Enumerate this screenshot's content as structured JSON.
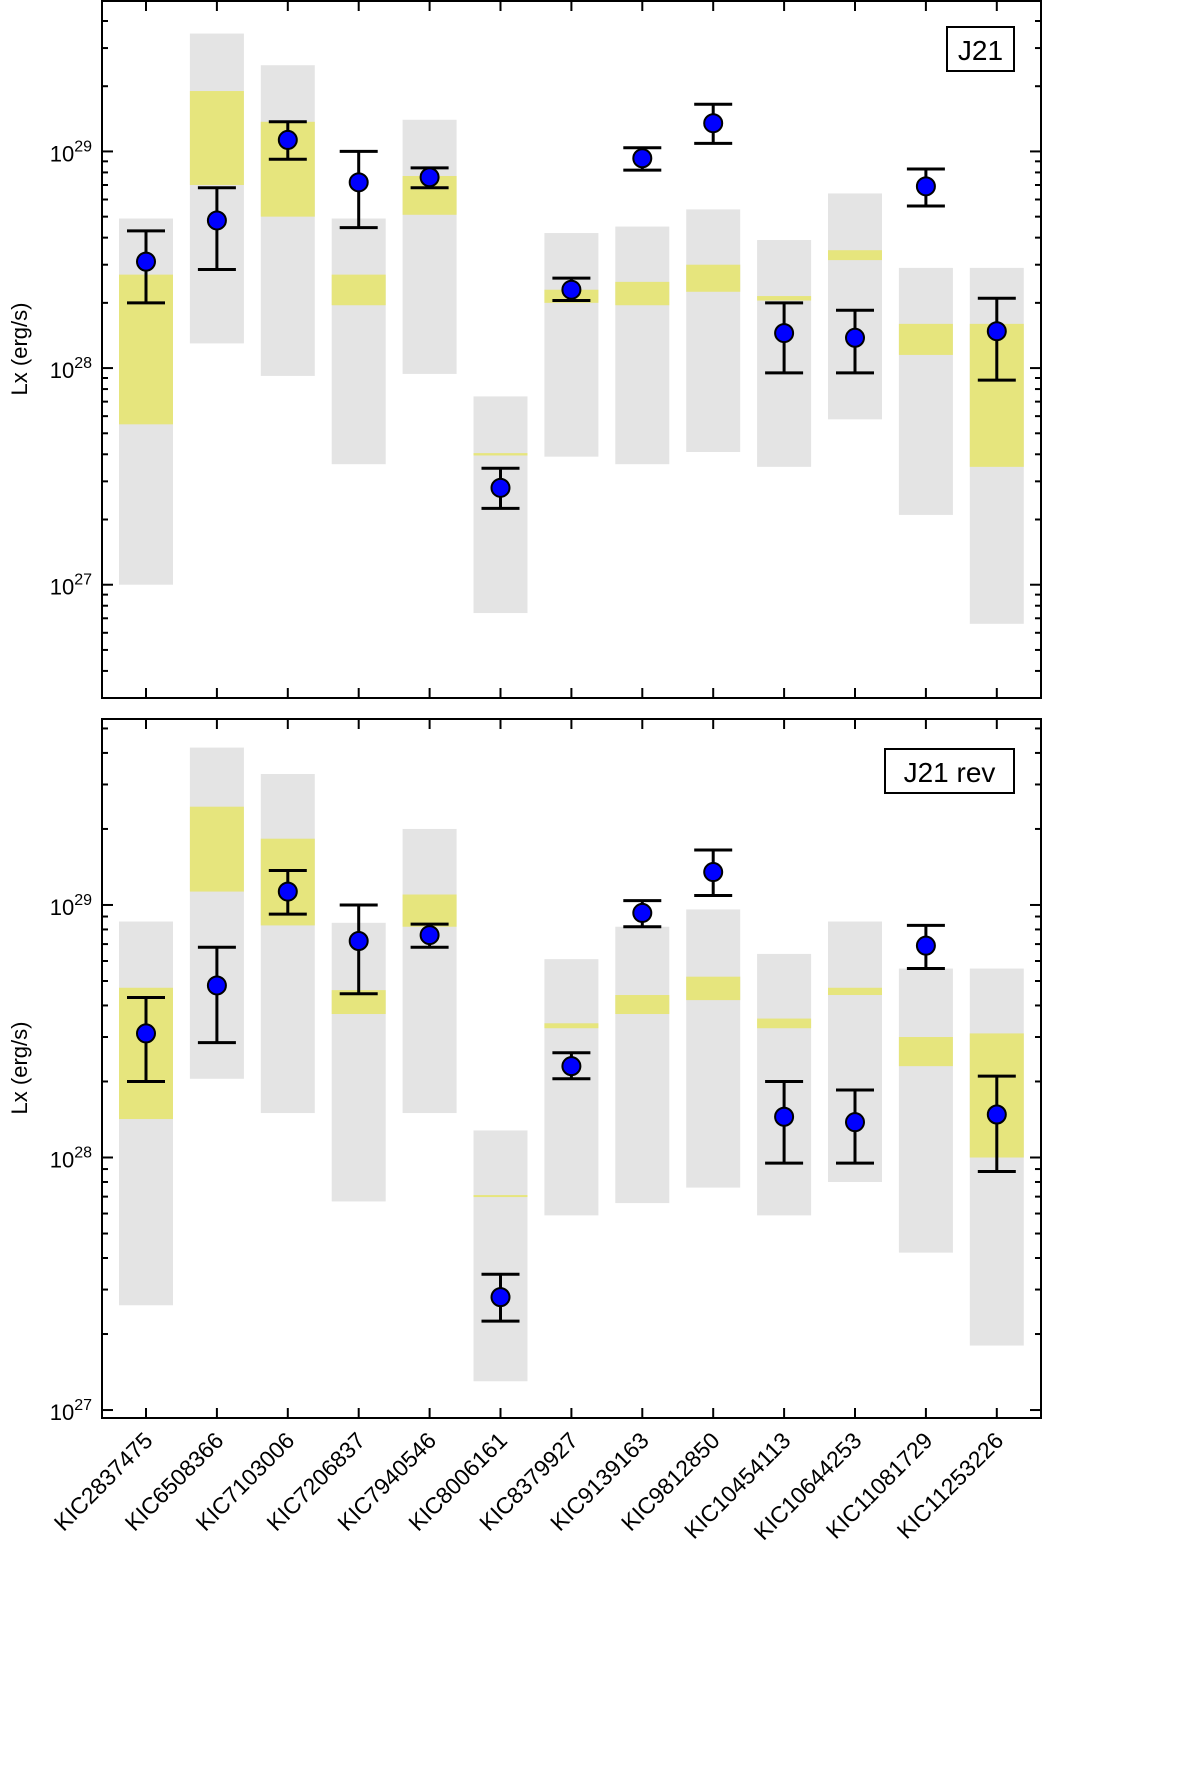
{
  "chart_data": [
    {
      "type": "errorbar-range",
      "panel_label": "J21",
      "ylabel": "Lx (erg/s)",
      "yscale": "log",
      "ylim": [
        3e+26,
        5e+29
      ],
      "yticks": [
        {
          "value": 1e+27,
          "base": "10",
          "exp": "27"
        },
        {
          "value": 1e+28,
          "base": "10",
          "exp": "28"
        },
        {
          "value": 1e+29,
          "base": "10",
          "exp": "29"
        }
      ],
      "categories": [
        "KIC2837475",
        "KIC6508366",
        "KIC7103006",
        "KIC7206837",
        "KIC7940546",
        "KIC8006161",
        "KIC8379927",
        "KIC9139163",
        "KIC9812850",
        "KIC10454113",
        "KIC10644253",
        "KIC11081729",
        "KIC11253226"
      ],
      "observed": [
        {
          "value": 3.1e+28,
          "low": 2e+28,
          "high": 4.3e+28
        },
        {
          "value": 4.8e+28,
          "low": 2.85e+28,
          "high": 6.8e+28
        },
        {
          "value": 1.13e+29,
          "low": 9.2e+28,
          "high": 1.37e+29
        },
        {
          "value": 7.2e+28,
          "low": 4.45e+28,
          "high": 1e+29
        },
        {
          "value": 7.6e+28,
          "low": 6.8e+28,
          "high": 8.4e+28
        },
        {
          "value": 2.8e+27,
          "low": 2.25e+27,
          "high": 3.45e+27
        },
        {
          "value": 2.3e+28,
          "low": 2.05e+28,
          "high": 2.6e+28
        },
        {
          "value": 9.3e+28,
          "low": 8.2e+28,
          "high": 1.04e+29
        },
        {
          "value": 1.35e+29,
          "low": 1.09e+29,
          "high": 1.65e+29
        },
        {
          "value": 1.45e+28,
          "low": 9.5e+27,
          "high": 2e+28
        },
        {
          "value": 1.38e+28,
          "low": 9.5e+27,
          "high": 1.85e+28
        },
        {
          "value": 6.9e+28,
          "low": 5.6e+28,
          "high": 8.3e+28
        },
        {
          "value": 1.48e+28,
          "low": 8.8e+27,
          "high": 2.1e+28
        }
      ],
      "model_range": [
        [
          1e+27,
          4.9e+28
        ],
        [
          1.3e+28,
          3.5e+29
        ],
        [
          9.2e+27,
          2.5e+29
        ],
        [
          3.6e+27,
          4.9e+28
        ],
        [
          9.4e+27,
          1.4e+29
        ],
        [
          7.4e+26,
          7.4e+27
        ],
        [
          3.9e+27,
          4.2e+28
        ],
        [
          3.6e+27,
          4.5e+28
        ],
        [
          4.1e+27,
          5.4e+28
        ],
        [
          3.5e+27,
          3.9e+28
        ],
        [
          5.8e+27,
          6.4e+28
        ],
        [
          2.1e+27,
          2.9e+28
        ],
        [
          6.6e+26,
          2.9e+28
        ]
      ],
      "model_core": [
        [
          5.5e+27,
          2.7e+28
        ],
        [
          7e+28,
          1.9e+29
        ],
        [
          5e+28,
          1.37e+29
        ],
        [
          1.95e+28,
          2.7e+28
        ],
        [
          5.1e+28,
          7.7e+28
        ],
        [
          3.95e+27,
          4.05e+27
        ],
        [
          2e+28,
          2.3e+28
        ],
        [
          1.95e+28,
          2.5e+28
        ],
        [
          2.25e+28,
          3e+28
        ],
        [
          2.05e+28,
          2.15e+28
        ],
        [
          3.15e+28,
          3.5e+28
        ],
        [
          1.15e+28,
          1.6e+28
        ],
        [
          3.5e+27,
          1.6e+28
        ]
      ]
    },
    {
      "type": "errorbar-range",
      "panel_label": "J21 rev",
      "ylabel": "Lx (erg/s)",
      "yscale": "log",
      "ylim": [
        9.3e+26,
        5.5e+29
      ],
      "yticks": [
        {
          "value": 1e+27,
          "base": "10",
          "exp": "27"
        },
        {
          "value": 1e+28,
          "base": "10",
          "exp": "28"
        },
        {
          "value": 1e+29,
          "base": "10",
          "exp": "29"
        }
      ],
      "categories": [
        "KIC2837475",
        "KIC6508366",
        "KIC7103006",
        "KIC7206837",
        "KIC7940546",
        "KIC8006161",
        "KIC8379927",
        "KIC9139163",
        "KIC9812850",
        "KIC10454113",
        "KIC10644253",
        "KIC11081729",
        "KIC11253226"
      ],
      "observed": [
        {
          "value": 3.1e+28,
          "low": 2e+28,
          "high": 4.3e+28
        },
        {
          "value": 4.8e+28,
          "low": 2.85e+28,
          "high": 6.8e+28
        },
        {
          "value": 1.13e+29,
          "low": 9.2e+28,
          "high": 1.37e+29
        },
        {
          "value": 7.2e+28,
          "low": 4.45e+28,
          "high": 1e+29
        },
        {
          "value": 7.6e+28,
          "low": 6.8e+28,
          "high": 8.4e+28
        },
        {
          "value": 2.8e+27,
          "low": 2.25e+27,
          "high": 3.45e+27
        },
        {
          "value": 2.3e+28,
          "low": 2.05e+28,
          "high": 2.6e+28
        },
        {
          "value": 9.3e+28,
          "low": 8.2e+28,
          "high": 1.04e+29
        },
        {
          "value": 1.35e+29,
          "low": 1.09e+29,
          "high": 1.65e+29
        },
        {
          "value": 1.45e+28,
          "low": 9.5e+27,
          "high": 2e+28
        },
        {
          "value": 1.38e+28,
          "low": 9.5e+27,
          "high": 1.85e+28
        },
        {
          "value": 6.9e+28,
          "low": 5.6e+28,
          "high": 8.3e+28
        },
        {
          "value": 1.48e+28,
          "low": 8.8e+27,
          "high": 2.1e+28
        }
      ],
      "model_range": [
        [
          2.6e+27,
          8.6e+28
        ],
        [
          2.05e+28,
          4.2e+29
        ],
        [
          1.5e+28,
          3.3e+29
        ],
        [
          6.7e+27,
          8.5e+28
        ],
        [
          1.5e+28,
          2e+29
        ],
        [
          1.3e+27,
          1.28e+28
        ],
        [
          5.9e+27,
          6.1e+28
        ],
        [
          6.6e+27,
          8.2e+28
        ],
        [
          7.6e+27,
          9.6e+28
        ],
        [
          5.9e+27,
          6.4e+28
        ],
        [
          8e+27,
          8.6e+28
        ],
        [
          4.2e+27,
          5.6e+28
        ],
        [
          1.8e+27,
          5.6e+28
        ]
      ],
      "model_core": [
        [
          1.42e+28,
          4.7e+28
        ],
        [
          1.13e+29,
          2.45e+29
        ],
        [
          8.3e+28,
          1.83e+29
        ],
        [
          3.7e+28,
          4.6e+28
        ],
        [
          8.2e+28,
          1.1e+29
        ],
        [
          7e+27,
          7.1e+27
        ],
        [
          3.25e+28,
          3.4e+28
        ],
        [
          3.7e+28,
          4.4e+28
        ],
        [
          4.2e+28,
          5.2e+28
        ],
        [
          3.25e+28,
          3.55e+28
        ],
        [
          4.4e+28,
          4.7e+28
        ],
        [
          2.3e+28,
          3e+28
        ],
        [
          1e+28,
          3.1e+28
        ]
      ]
    }
  ],
  "colors": {
    "model_range": "#e4e4e4",
    "model_core": "#e6e57d",
    "observed_marker": "#0000ff",
    "errorbar": "#000000",
    "axis": "#000000"
  }
}
